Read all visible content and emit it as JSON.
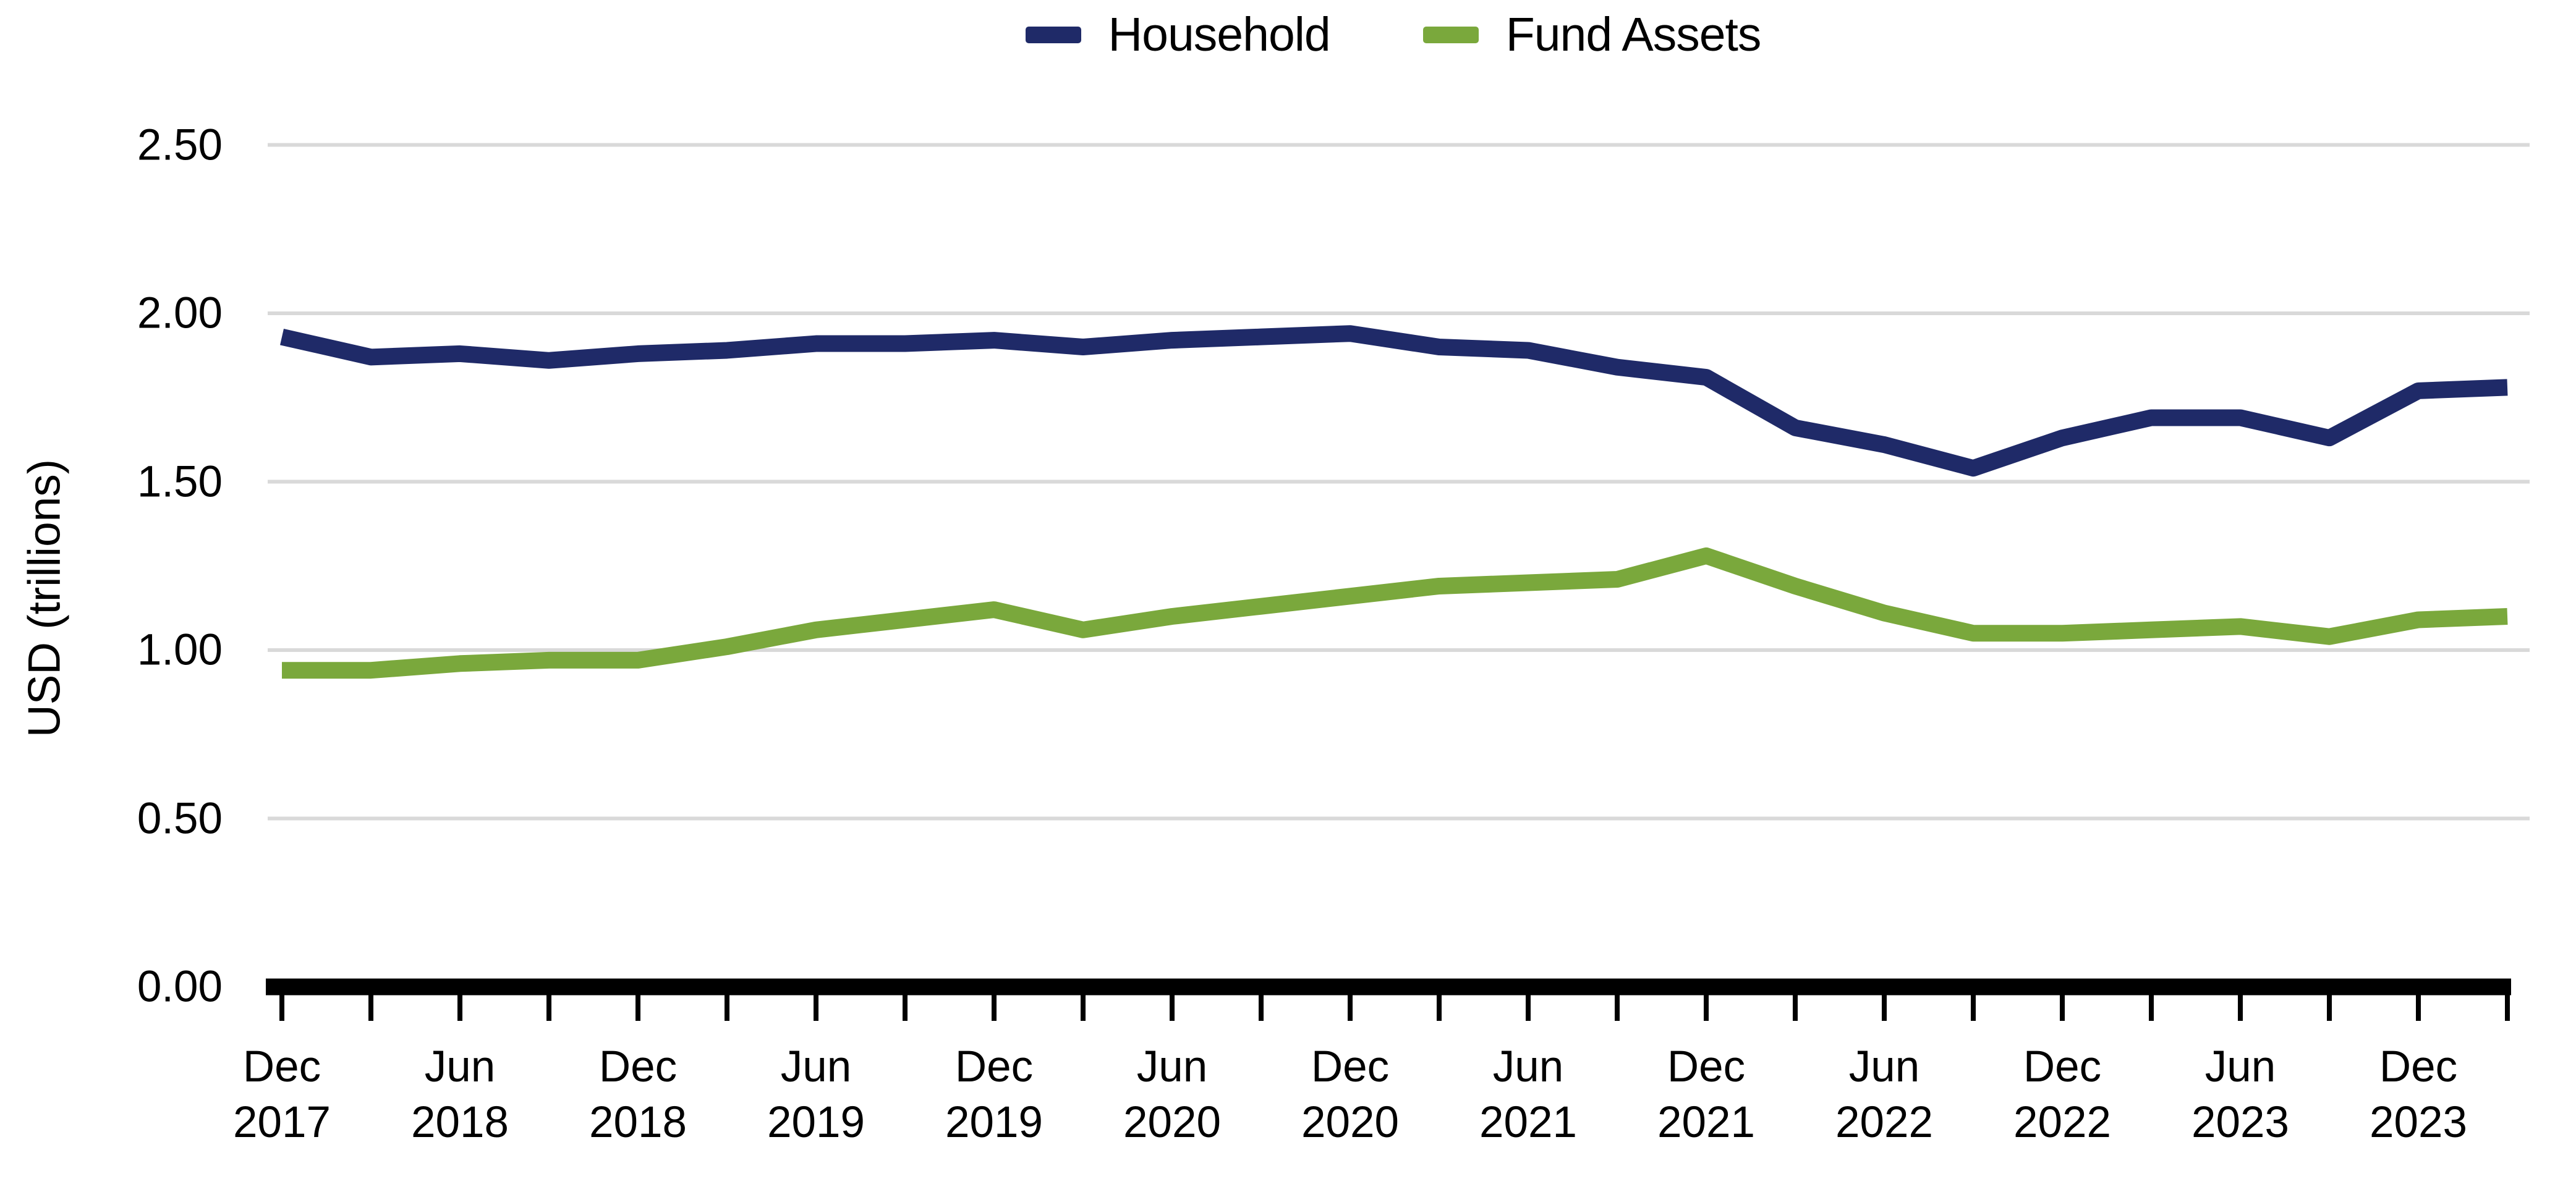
{
  "chart_data": {
    "type": "line",
    "title": "",
    "ylabel": "USD (trillions)",
    "xlabel": "",
    "ylim": [
      0,
      2.5
    ],
    "ytick_values": [
      0.0,
      0.5,
      1.0,
      1.5,
      2.0,
      2.5
    ],
    "ytick_labels": [
      "0.00",
      "0.50",
      "1.00",
      "1.50",
      "2.00",
      "2.50"
    ],
    "grid": "horizontal-only",
    "legend_position": "top-center",
    "x_frequency": "quarterly",
    "x": [
      "Dec 2017",
      "Mar 2018",
      "Jun 2018",
      "Sep 2018",
      "Dec 2018",
      "Mar 2019",
      "Jun 2019",
      "Sep 2019",
      "Dec 2019",
      "Mar 2020",
      "Jun 2020",
      "Sep 2020",
      "Dec 2020",
      "Mar 2021",
      "Jun 2021",
      "Sep 2021",
      "Dec 2021",
      "Mar 2022",
      "Jun 2022",
      "Sep 2022",
      "Dec 2022",
      "Mar 2023",
      "Jun 2023",
      "Sep 2023",
      "Dec 2023",
      "Mar 2024"
    ],
    "x_tick_labels": [
      {
        "month": "Dec",
        "year": "2017"
      },
      {
        "month": "Jun",
        "year": "2018"
      },
      {
        "month": "Dec",
        "year": "2018"
      },
      {
        "month": "Jun",
        "year": "2019"
      },
      {
        "month": "Dec",
        "year": "2019"
      },
      {
        "month": "Jun",
        "year": "2020"
      },
      {
        "month": "Dec",
        "year": "2020"
      },
      {
        "month": "Jun",
        "year": "2021"
      },
      {
        "month": "Dec",
        "year": "2021"
      },
      {
        "month": "Jun",
        "year": "2022"
      },
      {
        "month": "Dec",
        "year": "2022"
      },
      {
        "month": "Jun",
        "year": "2023"
      },
      {
        "month": "Dec",
        "year": "2023"
      }
    ],
    "labeled_tick_step": 2,
    "series": [
      {
        "name": "Household",
        "color": "#1F2A68",
        "values": [
          1.93,
          1.87,
          1.88,
          1.86,
          1.88,
          1.89,
          1.91,
          1.91,
          1.92,
          1.9,
          1.92,
          1.93,
          1.94,
          1.9,
          1.89,
          1.84,
          1.81,
          1.66,
          1.61,
          1.54,
          1.63,
          1.69,
          1.69,
          1.63,
          1.77,
          1.78
        ]
      },
      {
        "name": "Fund Assets",
        "color": "#7AA83C",
        "values": [
          0.94,
          0.94,
          0.96,
          0.97,
          0.97,
          1.01,
          1.06,
          1.09,
          1.12,
          1.06,
          1.1,
          1.13,
          1.16,
          1.19,
          1.2,
          1.21,
          1.28,
          1.19,
          1.11,
          1.05,
          1.05,
          1.06,
          1.07,
          1.04,
          1.09,
          1.1
        ]
      }
    ]
  },
  "legend": {
    "items": [
      {
        "label": "Household",
        "color": "#1F2A68"
      },
      {
        "label": "Fund Assets",
        "color": "#7AA83C"
      }
    ]
  },
  "y_axis": {
    "title": "USD (trillions)"
  },
  "colors": {
    "background": "#FFFFFF",
    "gridline": "#D9D9D9",
    "axis": "#000000",
    "text": "#000000"
  }
}
